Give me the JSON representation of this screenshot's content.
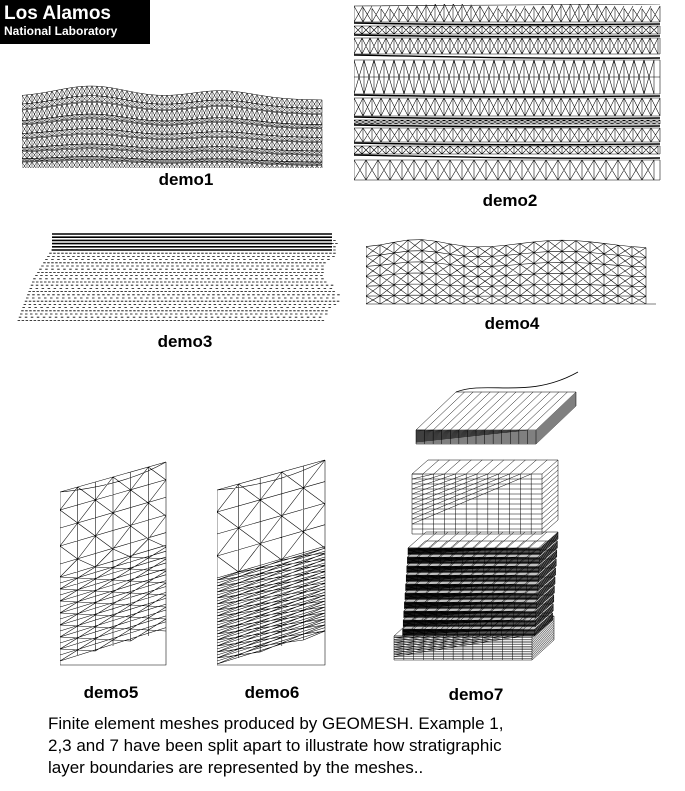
{
  "logo": {
    "line1": "Los Alamos",
    "line2": "National Laboratory"
  },
  "figures": [
    {
      "id": "demo1",
      "caption": "demo1"
    },
    {
      "id": "demo2",
      "caption": "demo2"
    },
    {
      "id": "demo3",
      "caption": "demo3"
    },
    {
      "id": "demo4",
      "caption": "demo4"
    },
    {
      "id": "demo5",
      "caption": "demo5"
    },
    {
      "id": "demo6",
      "caption": "demo6"
    },
    {
      "id": "demo7",
      "caption": "demo7"
    }
  ],
  "description": {
    "line1": "Finite element meshes produced by GEOMESH. Example 1,",
    "line2": "2,3 and 7 have been split apart to illustrate how stratigraphic",
    "line3": "layer boundaries are represented by the meshes.."
  }
}
